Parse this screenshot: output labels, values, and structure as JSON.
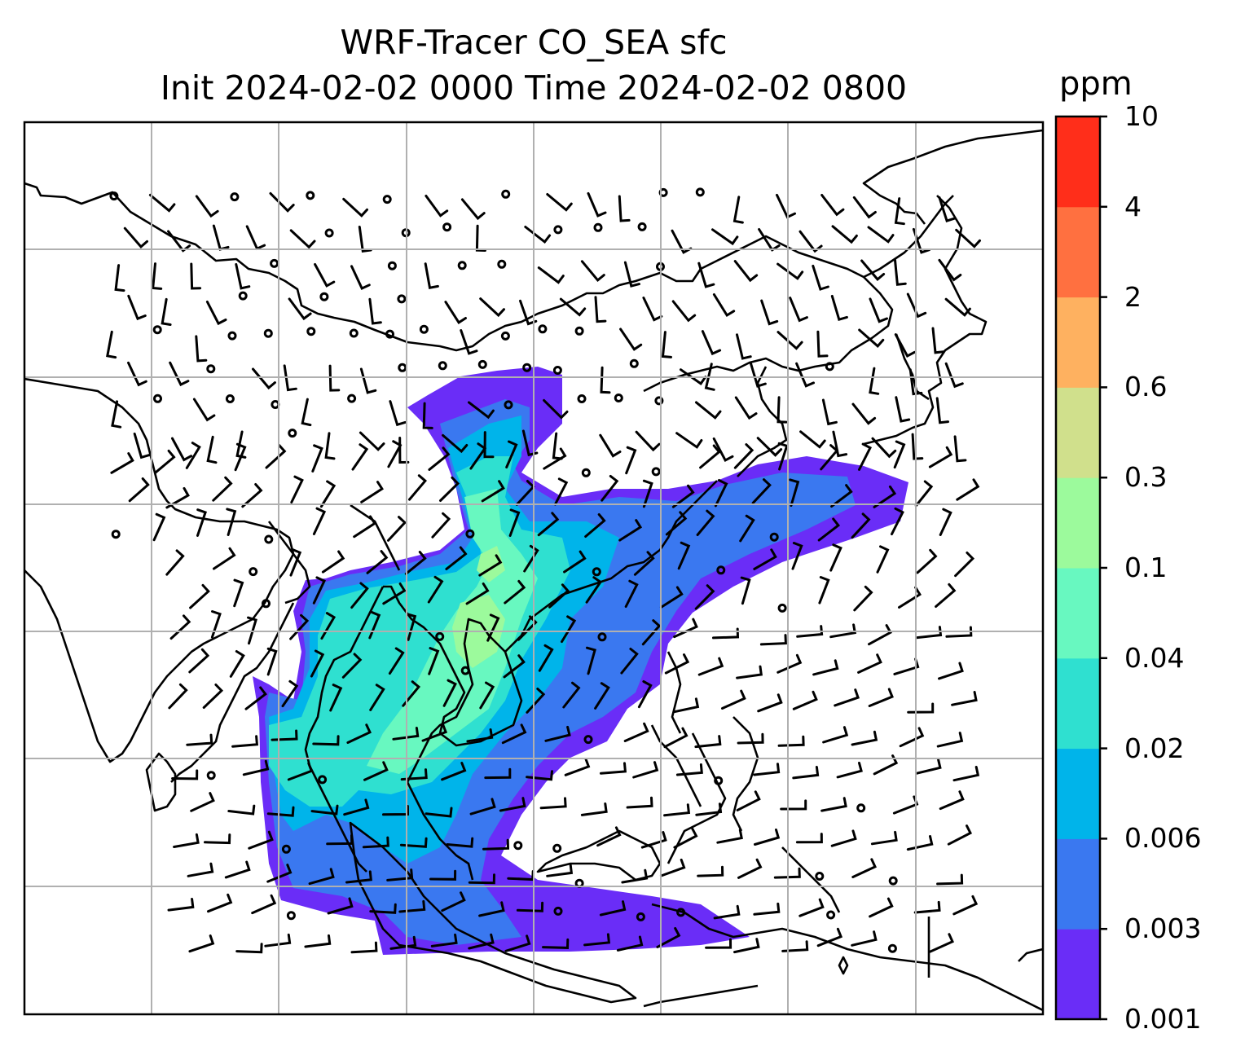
{
  "title": {
    "line1": "WRF-Tracer CO_SEA sfc",
    "line2": "Init 2024-02-02 0000 Time 2024-02-02 0800"
  },
  "colorbar": {
    "units": "ppm",
    "tick_labels": [
      "0.001",
      "0.003",
      "0.006",
      "0.02",
      "0.04",
      "0.1",
      "0.3",
      "0.6",
      "2",
      "4",
      "10"
    ],
    "colors": [
      "#6a2df7",
      "#3a78f0",
      "#00b4ea",
      "#2fe0d0",
      "#68f8c0",
      "#9cfa9c",
      "#d0e08c",
      "#feb160",
      "#ff7040",
      "#ff2e1a"
    ]
  },
  "map": {
    "gridlines": true,
    "wind_barbs": true,
    "plume_color_scale": "rainbow"
  }
}
